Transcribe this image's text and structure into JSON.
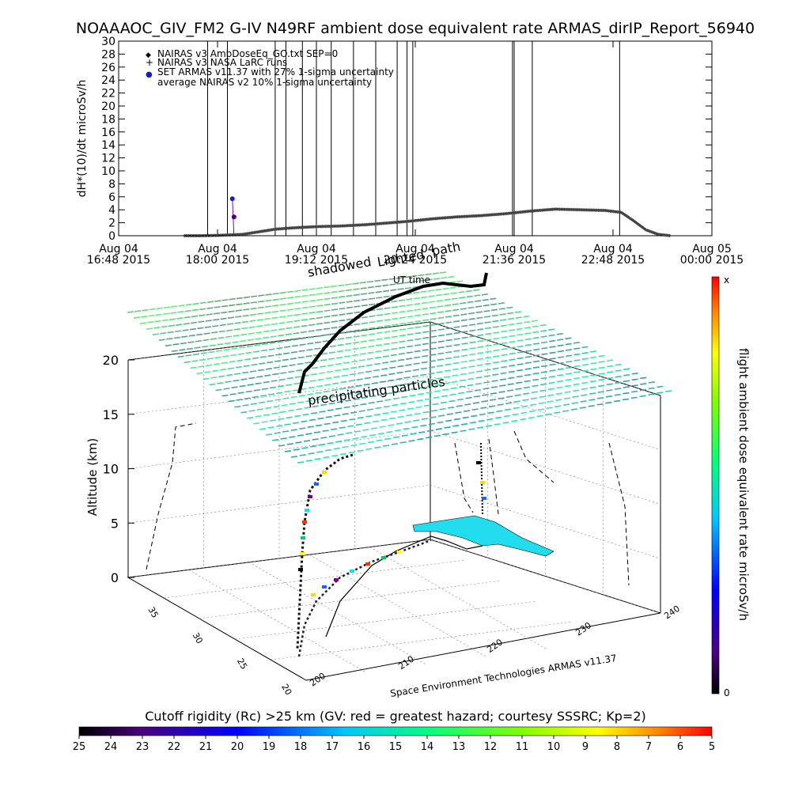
{
  "title": "NOAAAOC_GIV_FM2 G-IV   N49RF  ambient dose equivalent rate ARMAS_dirIP_Report_56940",
  "colors": {
    "background": "#ffffff",
    "axis": "#000000",
    "armas_marker": "#1a1acc",
    "precip_field": "#3cdc8c",
    "polar_region": "#22ddee"
  },
  "chart_data": [
    {
      "type": "scatter",
      "ylabel": "dH*(10)/dt microSv/h",
      "ylim": [
        0,
        30
      ],
      "y_ticks": [
        0,
        2,
        4,
        6,
        8,
        10,
        12,
        14,
        16,
        18,
        20,
        22,
        24,
        26,
        28,
        30
      ],
      "x_tick_labels": [
        [
          "Aug 04",
          "16:48 2015"
        ],
        [
          "Aug 04",
          "18:00 2015"
        ],
        [
          "Aug 04",
          "19:12 2015"
        ],
        [
          "Aug 04",
          "20:24 2015"
        ],
        [
          "Aug 04",
          "21:36 2015"
        ],
        [
          "Aug 04",
          "22:48 2015"
        ],
        [
          "Aug 05",
          "00:00 2015"
        ]
      ],
      "xlim_hours": [
        16.8,
        24.0
      ],
      "legend": {
        "placement": "top-left",
        "entries": [
          {
            "symbol": "◆",
            "label": "NAIRAS v3 AmbDoseEq_GO.txt SEP=0"
          },
          {
            "symbol": "+",
            "label": "NAIRAS v3 NASA LaRC runs"
          },
          {
            "symbol": "●",
            "label": "SET ARMAS v11.37 with 27% 1-sigma uncertainty"
          },
          {
            "symbol": "",
            "label": "average NAIRAS v2 10% 1-sigma uncertainty"
          }
        ]
      },
      "vertical_event_lines_hours": [
        17.88,
        18.12,
        18.7,
        18.83,
        19.03,
        19.2,
        19.38,
        19.65,
        19.92,
        20.18,
        20.3,
        20.37,
        21.58,
        21.6,
        21.82,
        22.88
      ],
      "series": [
        {
          "name": "NAIRAS v3 AmbDoseEq_GO.txt SEP=0",
          "x_hours": [
            17.6,
            17.8,
            18.0,
            18.3,
            18.5,
            18.7,
            18.9,
            19.2,
            19.5,
            19.8,
            20.0,
            20.3,
            20.6,
            20.9,
            21.2,
            21.5,
            21.8,
            22.1,
            22.4,
            22.7,
            22.9,
            23.05,
            23.2,
            23.35,
            23.5
          ],
          "y": [
            0.0,
            0.0,
            0.05,
            0.2,
            0.6,
            1.0,
            1.2,
            1.4,
            1.5,
            1.7,
            1.9,
            2.2,
            2.6,
            2.9,
            3.1,
            3.4,
            3.8,
            4.1,
            4.0,
            3.9,
            3.6,
            2.3,
            0.9,
            0.2,
            0.0
          ]
        },
        {
          "name": "SET ARMAS v11.37 with 27% 1-sigma uncertainty",
          "x_hours": [
            18.18,
            18.2
          ],
          "y": [
            5.7,
            2.9
          ]
        }
      ]
    },
    {
      "type": "scatter",
      "ylabel": "Altitude (km)",
      "z_ticks": [
        0,
        5,
        10,
        15,
        20
      ],
      "lat_ticks": [
        20,
        25,
        30,
        35
      ],
      "lon_ticks": [
        200,
        210,
        220,
        230,
        240
      ],
      "annotations": [
        "precipitating particles",
        "UT time",
        "shadowed",
        "Lighted",
        "path"
      ],
      "credit": "Space Environment Technologies ARMAS v11.37",
      "colorbar": {
        "label": "flight ambient dose equivalent rate microSv/h",
        "max_label": "x",
        "min_label": "0"
      }
    },
    {
      "type": "heatmap",
      "title": "Cutoff rigidity (Rc) >25 km (GV: red = greatest hazard; courtesy SSSRC; Kp=2)",
      "tick_labels": [
        "25",
        "24",
        "23",
        "22",
        "21",
        "20",
        "19",
        "18",
        "17",
        "16",
        "15",
        "14",
        "13",
        "12",
        "11",
        "10",
        "9",
        "8",
        "7",
        "6",
        "5"
      ]
    }
  ]
}
